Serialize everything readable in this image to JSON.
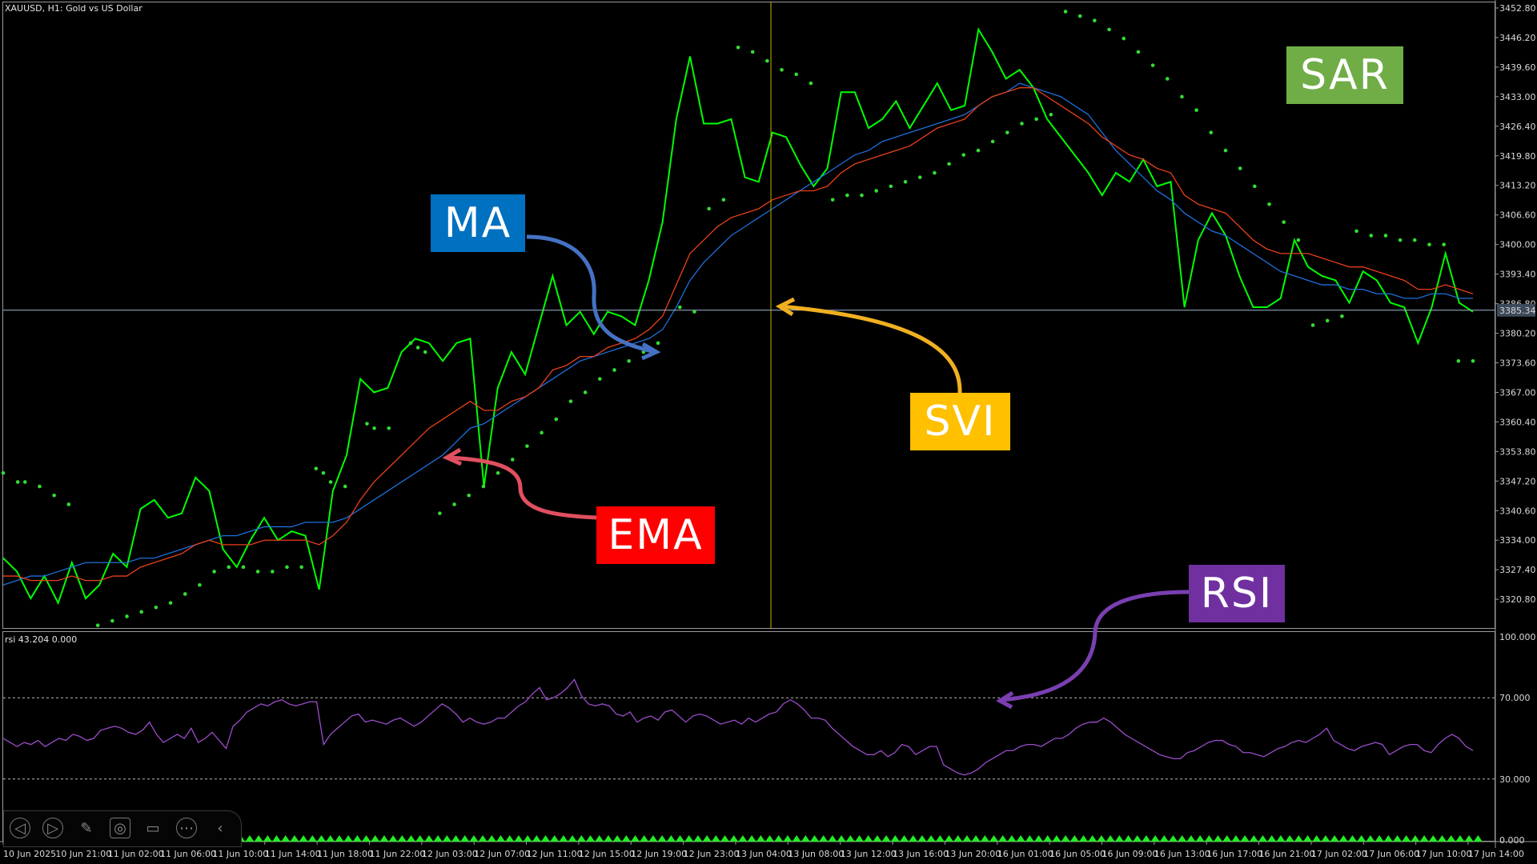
{
  "header": {
    "symbol_title": "XAUUSD, H1:  Gold vs US Dollar",
    "rsi_title": "rsi 43.204 0.000"
  },
  "annotations": {
    "ma": {
      "text": "MA",
      "color": "#0070c0"
    },
    "ema": {
      "text": "EMA",
      "color": "#ff0000"
    },
    "svi": {
      "text": "SVI",
      "color": "#ffc000"
    },
    "sar": {
      "text": "SAR",
      "color": "#70ad47"
    },
    "rsi": {
      "text": "RSI",
      "color": "#7030a0"
    }
  },
  "colors": {
    "price": "#00ff00",
    "ma": "#1e6fd9",
    "ema": "#e8401a",
    "sar": "#33dd33",
    "rsi": "#9b4dca",
    "crosshair_v": "#c8b400",
    "crosshair_h": "#a0b8d0",
    "arrow_ma": "#4472c4",
    "arrow_ema": "#e05060",
    "arrow_svi": "#f0b020",
    "arrow_rsi": "#7a3fb0"
  },
  "toolbar": {
    "icons": [
      "back-icon",
      "play-icon",
      "pencil-icon",
      "screenshot-icon",
      "video-icon",
      "more-icon",
      "collapse-icon"
    ]
  },
  "chart_data": [
    {
      "type": "line",
      "title": "XAUUSD, H1:  Gold vs US Dollar",
      "ylim": [
        3314.4,
        3452.8
      ],
      "y_ticks": [
        "3452.80",
        "3446.20",
        "3439.60",
        "3433.00",
        "3426.40",
        "3419.80",
        "3413.20",
        "3406.60",
        "3400.00",
        "3393.40",
        "3386.80",
        "3380.20",
        "3373.60",
        "3367.00",
        "3360.40",
        "3353.80",
        "3347.20",
        "3340.60",
        "3334.00",
        "3327.40",
        "3320.80"
      ],
      "current_price_label": "3385.34",
      "current_price": 3385.34,
      "x_labels": [
        "10 Jun 2025",
        "10 Jun 21:00",
        "11 Jun 02:00",
        "11 Jun 06:00",
        "11 Jun 10:00",
        "11 Jun 14:00",
        "11 Jun 18:00",
        "11 Jun 22:00",
        "12 Jun 03:00",
        "12 Jun 07:00",
        "12 Jun 11:00",
        "12 Jun 15:00",
        "12 Jun 19:00",
        "12 Jun 23:00",
        "13 Jun 04:00",
        "13 Jun 08:00",
        "13 Jun 12:00",
        "13 Jun 16:00",
        "13 Jun 20:00",
        "16 Jun 01:00",
        "16 Jun 05:00",
        "16 Jun 09:00",
        "16 Jun 13:00",
        "16 Jun 17:00",
        "16 Jun 21:00",
        "17 Jun 02:00",
        "17 Jun 06:00",
        "17 Jun 10:00",
        "17 Jun 14:00"
      ],
      "series": [
        {
          "key": "price",
          "values": [
            3330,
            3327,
            3321,
            3326,
            3320,
            3329,
            3321,
            3324,
            3331,
            3328,
            3341,
            3343,
            3339,
            3340,
            3348,
            3345,
            3332,
            3328,
            3334,
            3339,
            3334,
            3336,
            3335,
            3323,
            3345,
            3353,
            3370,
            3367,
            3368,
            3376,
            3379,
            3378,
            3374,
            3378,
            3379,
            3346,
            3368,
            3376,
            3371,
            3382,
            3393,
            3382,
            3385,
            3380,
            3385,
            3384,
            3382,
            3392,
            3405,
            3428,
            3442,
            3427,
            3427,
            3428,
            3415,
            3414,
            3425,
            3424,
            3418,
            3413,
            3417,
            3434,
            3434,
            3426,
            3428,
            3432,
            3426,
            3431,
            3436,
            3430,
            3431,
            3448,
            3443,
            3437,
            3439,
            3435,
            3428,
            3424,
            3420,
            3416,
            3411,
            3416,
            3414,
            3419,
            3413,
            3414,
            3386,
            3401,
            3407,
            3402,
            3393,
            3386,
            3386,
            3388,
            3401,
            3395,
            3393,
            3392,
            3387,
            3394,
            3392,
            3387,
            3386,
            3378,
            3386,
            3398,
            3387,
            3385
          ],
          "color": "#00ff00"
        },
        {
          "key": "ma",
          "values": [
            3324,
            3325,
            3326,
            3326,
            3327,
            3328,
            3329,
            3329,
            3329,
            3329,
            3330,
            3330,
            3331,
            3332,
            3333,
            3334,
            3335,
            3335,
            3336,
            3337,
            3337,
            3337,
            3338,
            3338,
            3338,
            3339,
            3341,
            3343,
            3345,
            3347,
            3349,
            3351,
            3353,
            3356,
            3359,
            3360,
            3362,
            3364,
            3366,
            3368,
            3370,
            3372,
            3374,
            3375,
            3376,
            3377,
            3378,
            3379,
            3381,
            3386,
            3392,
            3396,
            3399,
            3402,
            3404,
            3406,
            3408,
            3410,
            3412,
            3414,
            3416,
            3418,
            3420,
            3421,
            3423,
            3424,
            3425,
            3426,
            3427,
            3428,
            3429,
            3431,
            3433,
            3434,
            3436,
            3435,
            3434,
            3433,
            3431,
            3429,
            3425,
            3421,
            3418,
            3415,
            3412,
            3410,
            3407,
            3405,
            3403,
            3402,
            3400,
            3398,
            3396,
            3394,
            3393,
            3392,
            3391,
            3391,
            3390,
            3390,
            3389,
            3389,
            3388,
            3388,
            3389,
            3389,
            3388,
            3388
          ],
          "color": "#1e6fd9"
        },
        {
          "key": "ema",
          "values": [
            3326,
            3326,
            3325,
            3325,
            3325,
            3326,
            3325,
            3325,
            3326,
            3326,
            3328,
            3329,
            3330,
            3331,
            3333,
            3334,
            3333,
            3333,
            3333,
            3334,
            3334,
            3334,
            3334,
            3333,
            3335,
            3338,
            3343,
            3347,
            3350,
            3353,
            3356,
            3359,
            3361,
            3363,
            3365,
            3363,
            3363,
            3365,
            3366,
            3368,
            3372,
            3373,
            3375,
            3375,
            3377,
            3378,
            3379,
            3381,
            3384,
            3391,
            3398,
            3401,
            3404,
            3406,
            3407,
            3408,
            3410,
            3411,
            3412,
            3412,
            3413,
            3416,
            3418,
            3419,
            3420,
            3421,
            3422,
            3424,
            3426,
            3427,
            3428,
            3431,
            3433,
            3434,
            3435,
            3435,
            3433,
            3431,
            3429,
            3427,
            3424,
            3422,
            3420,
            3419,
            3417,
            3416,
            3411,
            3409,
            3408,
            3407,
            3404,
            3401,
            3399,
            3398,
            3398,
            3398,
            3397,
            3396,
            3395,
            3395,
            3394,
            3393,
            3392,
            3390,
            3390,
            3391,
            3390,
            3389
          ],
          "color": "#e8401a"
        },
        {
          "key": "sar",
          "style": "dots",
          "points": [
            [
              0,
              3349
            ],
            [
              2,
              3347
            ],
            [
              3,
              3347
            ],
            [
              5,
              3346
            ],
            [
              7,
              3344
            ],
            [
              9,
              3342
            ],
            [
              13,
              3315
            ],
            [
              15,
              3316
            ],
            [
              17,
              3317
            ],
            [
              19,
              3318
            ],
            [
              21,
              3319
            ],
            [
              23,
              3320
            ],
            [
              25,
              3322
            ],
            [
              27,
              3324
            ],
            [
              29,
              3327
            ],
            [
              31,
              3328
            ],
            [
              33,
              3328
            ],
            [
              35,
              3327
            ],
            [
              37,
              3327
            ],
            [
              39,
              3328
            ],
            [
              41,
              3328
            ],
            [
              43,
              3350
            ],
            [
              44,
              3349
            ],
            [
              45,
              3347
            ],
            [
              47,
              3346
            ],
            [
              50,
              3360
            ],
            [
              51,
              3359
            ],
            [
              53,
              3359
            ],
            [
              56,
              3378
            ],
            [
              57,
              3377
            ],
            [
              58,
              3376
            ],
            [
              60,
              3340
            ],
            [
              62,
              3342
            ],
            [
              64,
              3344
            ],
            [
              66,
              3346
            ],
            [
              68,
              3349
            ],
            [
              70,
              3352
            ],
            [
              72,
              3355
            ],
            [
              74,
              3358
            ],
            [
              76,
              3361
            ],
            [
              78,
              3365
            ],
            [
              80,
              3367
            ],
            [
              82,
              3370
            ],
            [
              84,
              3372
            ],
            [
              86,
              3374
            ],
            [
              88,
              3376
            ],
            [
              90,
              3378
            ],
            [
              93,
              3386
            ],
            [
              95,
              3385
            ],
            [
              97,
              3408
            ],
            [
              99,
              3410
            ],
            [
              101,
              3444
            ],
            [
              103,
              3443
            ],
            [
              105,
              3441
            ],
            [
              107,
              3439
            ],
            [
              109,
              3438
            ],
            [
              111,
              3436
            ],
            [
              114,
              3410
            ],
            [
              116,
              3411
            ],
            [
              118,
              3411
            ],
            [
              120,
              3412
            ],
            [
              122,
              3413
            ],
            [
              124,
              3414
            ],
            [
              126,
              3415
            ],
            [
              128,
              3416
            ],
            [
              130,
              3418
            ],
            [
              132,
              3420
            ],
            [
              134,
              3421
            ],
            [
              136,
              3423
            ],
            [
              138,
              3425
            ],
            [
              140,
              3427
            ],
            [
              142,
              3428
            ],
            [
              144,
              3429
            ],
            [
              146,
              3452
            ],
            [
              148,
              3451
            ],
            [
              150,
              3450
            ],
            [
              152,
              3448
            ],
            [
              154,
              3446
            ],
            [
              156,
              3443
            ],
            [
              158,
              3440
            ],
            [
              160,
              3437
            ],
            [
              162,
              3433
            ],
            [
              164,
              3430
            ],
            [
              166,
              3425
            ],
            [
              168,
              3421
            ],
            [
              170,
              3417
            ],
            [
              172,
              3413
            ],
            [
              174,
              3409
            ],
            [
              176,
              3405
            ],
            [
              178,
              3401
            ],
            [
              180,
              3382
            ],
            [
              182,
              3383
            ],
            [
              184,
              3384
            ],
            [
              186,
              3403
            ],
            [
              188,
              3402
            ],
            [
              190,
              3402
            ],
            [
              192,
              3401
            ],
            [
              194,
              3401
            ],
            [
              196,
              3400
            ],
            [
              198,
              3400
            ],
            [
              200,
              3374
            ],
            [
              202,
              3374
            ]
          ],
          "color": "#33dd33"
        }
      ]
    },
    {
      "type": "line",
      "title": "rsi 43.204 0.000",
      "ylim": [
        0,
        100
      ],
      "y_ticks": [
        "100.000",
        "70.000",
        "30.000",
        "0.000"
      ],
      "levels": [
        70,
        30
      ],
      "series": [
        {
          "key": "rsi",
          "values": [
            50,
            48,
            46,
            48,
            47,
            49,
            46,
            48,
            50,
            49,
            52,
            51,
            49,
            50,
            54,
            55,
            56,
            55,
            53,
            52,
            54,
            58,
            52,
            48,
            50,
            52,
            50,
            55,
            48,
            50,
            53,
            49,
            45,
            56,
            59,
            63,
            65,
            67,
            66,
            68,
            69,
            67,
            66,
            67,
            68,
            68,
            47,
            52,
            55,
            58,
            61,
            62,
            58,
            59,
            58,
            57,
            59,
            60,
            58,
            56,
            58,
            61,
            64,
            67,
            65,
            62,
            58,
            60,
            58,
            57,
            58,
            60,
            60,
            63,
            66,
            68,
            72,
            75,
            69,
            70,
            72,
            75,
            79,
            71,
            67,
            66,
            67,
            66,
            62,
            61,
            63,
            58,
            60,
            61,
            59,
            63,
            64,
            61,
            58,
            61,
            62,
            61,
            59,
            57,
            58,
            59,
            57,
            60,
            58,
            60,
            62,
            63,
            67,
            69,
            67,
            64,
            60,
            60,
            59,
            55,
            52,
            49,
            46,
            44,
            42,
            42,
            44,
            41,
            43,
            47,
            46,
            42,
            44,
            46,
            46,
            37,
            35,
            33,
            32,
            33,
            35,
            38,
            40,
            42,
            44,
            44,
            46,
            47,
            47,
            46,
            48,
            50,
            50,
            52,
            55,
            57,
            58,
            58,
            60,
            58,
            55,
            52,
            50,
            48,
            46,
            44,
            42,
            41,
            40,
            40,
            43,
            44,
            46,
            48,
            49,
            49,
            47,
            46,
            43,
            43,
            42,
            41,
            43,
            45,
            46,
            48,
            49,
            48,
            50,
            52,
            55,
            49,
            47,
            45,
            44,
            46,
            47,
            48,
            47,
            42,
            44,
            46,
            47,
            47,
            44,
            43,
            47,
            50,
            52,
            50,
            46,
            44
          ],
          "color": "#9b4dca"
        }
      ]
    }
  ]
}
